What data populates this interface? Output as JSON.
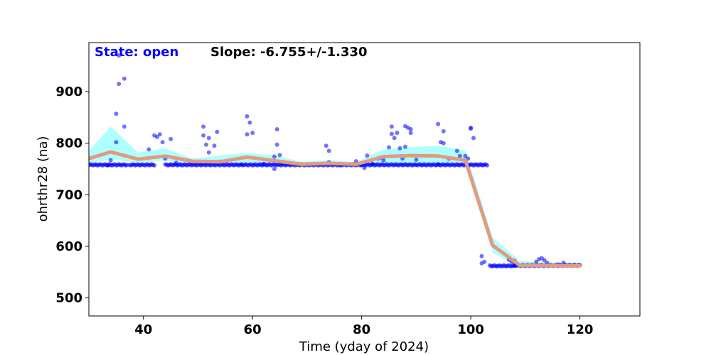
{
  "chart_data": {
    "type": "scatter",
    "xlabel": "Time (yday of 2024)",
    "ylabel": "ohrthr28 (na)",
    "xlim": [
      30,
      131
    ],
    "ylim": [
      465,
      995
    ],
    "x_ticks": [
      40,
      60,
      80,
      100,
      120
    ],
    "y_ticks": [
      500,
      600,
      700,
      800,
      900
    ],
    "annotations": {
      "state": "State: open",
      "slope": "Slope: -6.755+/-1.330"
    },
    "colors": {
      "points": "#0000ff",
      "band": "#aaffff",
      "trend": "#e39a7e",
      "state_text": "#0000ff",
      "slope_text": "#000000"
    },
    "band": {
      "x": [
        30,
        34,
        39,
        44,
        49,
        54,
        59,
        64,
        69,
        74,
        79,
        84,
        89,
        94,
        99,
        104,
        109,
        114,
        119,
        120
      ],
      "upper": [
        785,
        832,
        782,
        790,
        770,
        776,
        781,
        776,
        764,
        767,
        763,
        788,
        792,
        795,
        786,
        617,
        572,
        568,
        566,
        565
      ],
      "lower": [
        762,
        768,
        763,
        766,
        760,
        760,
        764,
        759,
        757,
        757,
        755,
        761,
        762,
        762,
        763,
        588,
        558,
        559,
        560,
        560
      ]
    },
    "trend": {
      "x": [
        30,
        34,
        39,
        44,
        49,
        54,
        59,
        64,
        69,
        74,
        79,
        84,
        89,
        94,
        99,
        104,
        109,
        114,
        119,
        120
      ],
      "y": [
        770,
        783,
        769,
        775,
        765,
        764,
        773,
        766,
        759,
        761,
        759,
        774,
        776,
        775,
        767,
        602,
        563,
        563,
        562,
        562
      ]
    },
    "baseline_segments": [
      {
        "x0": 30,
        "x1": 37,
        "y": 758
      },
      {
        "x0": 37.5,
        "x1": 42,
        "y": 758
      },
      {
        "x0": 44,
        "x1": 58,
        "y": 758
      },
      {
        "x0": 58,
        "x1": 70,
        "y": 758
      },
      {
        "x0": 70,
        "x1": 80,
        "y": 758
      },
      {
        "x0": 80,
        "x1": 94,
        "y": 758
      },
      {
        "x0": 94,
        "x1": 103,
        "y": 758
      },
      {
        "x0": 103.5,
        "x1": 108,
        "y": 562
      },
      {
        "x0": 108,
        "x1": 120,
        "y": 563
      }
    ],
    "outliers": [
      [
        35.5,
        970
      ],
      [
        35.5,
        915
      ],
      [
        36.5,
        925
      ],
      [
        36.5,
        832
      ],
      [
        35,
        857
      ],
      [
        35,
        802
      ],
      [
        33.5,
        757
      ],
      [
        34,
        767
      ],
      [
        41,
        788
      ],
      [
        42,
        815
      ],
      [
        42.5,
        812
      ],
      [
        43,
        817
      ],
      [
        43.5,
        802
      ],
      [
        45,
        808
      ],
      [
        44,
        770
      ],
      [
        46,
        762
      ],
      [
        51,
        832
      ],
      [
        51,
        815
      ],
      [
        51.5,
        797
      ],
      [
        52,
        810
      ],
      [
        52,
        782
      ],
      [
        53,
        795
      ],
      [
        53.5,
        822
      ],
      [
        54,
        764
      ],
      [
        59,
        852
      ],
      [
        59,
        817
      ],
      [
        59.5,
        840
      ],
      [
        60,
        820
      ],
      [
        62,
        760
      ],
      [
        64,
        750
      ],
      [
        64.5,
        827
      ],
      [
        64.5,
        797
      ],
      [
        64,
        774
      ],
      [
        65,
        777
      ],
      [
        73.5,
        795
      ],
      [
        74,
        785
      ],
      [
        74,
        763
      ],
      [
        75,
        760
      ],
      [
        76,
        757
      ],
      [
        79,
        765
      ],
      [
        80.5,
        752
      ],
      [
        81,
        776
      ],
      [
        82,
        760
      ],
      [
        83,
        770
      ],
      [
        83.5,
        772
      ],
      [
        84,
        767
      ],
      [
        85,
        792
      ],
      [
        85.5,
        832
      ],
      [
        85.5,
        818
      ],
      [
        86,
        810
      ],
      [
        86.5,
        820
      ],
      [
        87,
        790
      ],
      [
        87.5,
        770
      ],
      [
        88,
        833
      ],
      [
        88.5,
        830
      ],
      [
        89,
        827
      ],
      [
        89,
        820
      ],
      [
        88,
        793
      ],
      [
        90,
        768
      ],
      [
        94,
        837
      ],
      [
        94.5,
        802
      ],
      [
        95,
        800
      ],
      [
        95,
        823
      ],
      [
        96,
        770
      ],
      [
        97.5,
        785
      ],
      [
        98,
        775
      ],
      [
        99.5,
        770
      ],
      [
        100,
        830
      ],
      [
        100,
        828
      ],
      [
        100.5,
        810
      ],
      [
        99,
        775
      ],
      [
        102,
        581
      ],
      [
        102.5,
        570
      ],
      [
        102,
        567
      ],
      [
        107,
        574
      ],
      [
        107.5,
        570
      ],
      [
        108,
        572
      ],
      [
        112,
        570
      ],
      [
        112.5,
        575
      ],
      [
        113,
        577
      ],
      [
        113.5,
        573
      ],
      [
        114,
        568
      ],
      [
        116,
        565
      ],
      [
        117,
        568
      ]
    ]
  }
}
